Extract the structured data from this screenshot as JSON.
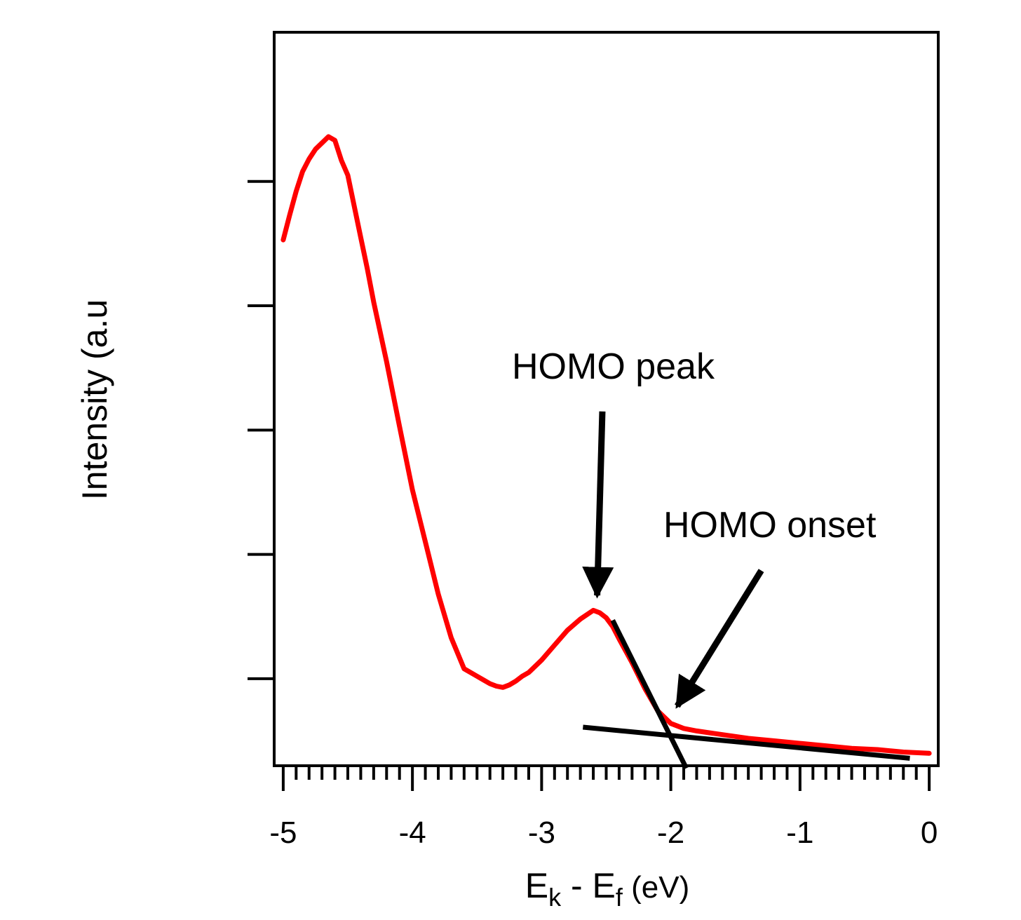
{
  "chart_data": {
    "type": "line",
    "title": "",
    "xlabel": {
      "main": "E",
      "sub1": "k",
      "middle": " - E",
      "sub2": "f",
      "unit": " (eV)"
    },
    "ylabel": "Intensity (a.u",
    "xlim": [
      -5.07,
      0.07
    ],
    "ylim": [
      0,
      5.9
    ],
    "x_ticks": [
      -5,
      -4,
      -3,
      -2,
      -1,
      0
    ],
    "x_tick_labels": [
      "-5",
      "-4",
      "-3",
      "-2",
      "-1",
      "0"
    ],
    "x_minor_step": 0.1,
    "y_ticks": [
      0.7,
      1.7,
      2.7,
      3.7,
      4.7
    ],
    "y_tick_labels": [],
    "grid": false,
    "legend": "none",
    "series": [
      {
        "color": "#ff0000",
        "x": [
          -5.0,
          -4.95,
          -4.9,
          -4.85,
          -4.8,
          -4.75,
          -4.7,
          -4.65,
          -4.6,
          -4.55,
          -4.5,
          -4.45,
          -4.4,
          -4.35,
          -4.3,
          -4.2,
          -4.1,
          -4.0,
          -3.9,
          -3.8,
          -3.7,
          -3.6,
          -3.5,
          -3.45,
          -3.4,
          -3.35,
          -3.3,
          -3.25,
          -3.2,
          -3.15,
          -3.1,
          -3.0,
          -2.9,
          -2.8,
          -2.7,
          -2.6,
          -2.55,
          -2.5,
          -2.45,
          -2.4,
          -2.3,
          -2.2,
          -2.1,
          -2.0,
          -1.9,
          -1.8,
          -1.6,
          -1.4,
          -1.2,
          -1.0,
          -0.8,
          -0.6,
          -0.4,
          -0.2,
          0.0
        ],
        "y": [
          4.23,
          4.43,
          4.62,
          4.78,
          4.88,
          4.96,
          5.01,
          5.06,
          5.03,
          4.87,
          4.75,
          4.5,
          4.25,
          4.0,
          3.73,
          3.25,
          2.73,
          2.22,
          1.8,
          1.38,
          1.03,
          0.78,
          0.72,
          0.69,
          0.66,
          0.64,
          0.63,
          0.65,
          0.68,
          0.72,
          0.75,
          0.85,
          0.97,
          1.09,
          1.18,
          1.25,
          1.23,
          1.19,
          1.12,
          1.02,
          0.83,
          0.62,
          0.44,
          0.34,
          0.3,
          0.28,
          0.25,
          0.22,
          0.2,
          0.18,
          0.16,
          0.14,
          0.13,
          0.11,
          0.1
        ]
      }
    ],
    "fit_lines": [
      {
        "x": [
          -2.45,
          -1.88
        ],
        "y": [
          1.17,
          -0.02
        ]
      },
      {
        "x": [
          -2.68,
          -0.15
        ],
        "y": [
          0.31,
          0.06
        ]
      }
    ],
    "annotations": [
      {
        "text": "HOMO peak",
        "arrow_from": [
          -2.53,
          2.85
        ],
        "arrow_to": [
          -2.57,
          1.37
        ]
      },
      {
        "text": "HOMO onset",
        "arrow_from": [
          -1.3,
          1.57
        ],
        "arrow_to": [
          -1.95,
          0.48
        ]
      }
    ]
  }
}
